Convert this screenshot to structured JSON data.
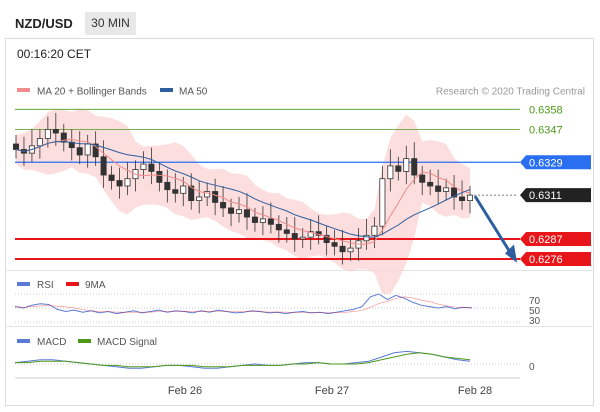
{
  "header": {
    "pair": "NZD/USD",
    "timeframe": "30 MIN",
    "time": "00:16:20 CET"
  },
  "chart_data": [
    {
      "type": "candlestick",
      "title": "",
      "copyright": "Research © 2020 Trading Central",
      "legend": [
        {
          "name": "MA 20 + Bollinger Bands",
          "color": "#f28b8b"
        },
        {
          "name": "MA 50",
          "color": "#2d5f9e"
        }
      ],
      "x_ticks": [
        "Feb 26",
        "Feb 27",
        "Feb 28"
      ],
      "ylim": [
        0.627,
        0.6362
      ],
      "levels": [
        {
          "label": "0.6358",
          "value": 0.6358,
          "color": "#4d9a1a",
          "kind": "target"
        },
        {
          "label": "0.6347",
          "value": 0.6347,
          "color": "#4d9a1a",
          "kind": "target"
        },
        {
          "label": "0.6329",
          "value": 0.6329,
          "color": "#2a6ff0",
          "kind": "pivot"
        },
        {
          "label": "0.6311",
          "value": 0.6311,
          "color": "#222222",
          "kind": "last"
        },
        {
          "label": "0.6287",
          "value": 0.6287,
          "color": "#e8161a",
          "kind": "support"
        },
        {
          "label": "0.6276",
          "value": 0.6276,
          "color": "#e8161a",
          "kind": "support"
        }
      ],
      "series": [
        {
          "name": "Close",
          "values": [
            0.6336,
            0.6334,
            0.6338,
            0.6342,
            0.6347,
            0.6345,
            0.634,
            0.6337,
            0.6333,
            0.6339,
            0.6332,
            0.6322,
            0.6319,
            0.6316,
            0.632,
            0.6325,
            0.6328,
            0.6324,
            0.6318,
            0.6314,
            0.6312,
            0.6316,
            0.6308,
            0.631,
            0.6313,
            0.6307,
            0.6304,
            0.6301,
            0.6303,
            0.6299,
            0.6296,
            0.6298,
            0.6295,
            0.6292,
            0.629,
            0.6287,
            0.6288,
            0.6291,
            0.6289,
            0.6285,
            0.6283,
            0.628,
            0.6282,
            0.6286,
            0.6289,
            0.6294,
            0.632,
            0.6327,
            0.6324,
            0.6331,
            0.6322,
            0.6318,
            0.6316,
            0.6313,
            0.6315,
            0.631,
            0.6308,
            0.6311
          ]
        }
      ]
    },
    {
      "type": "line",
      "title": "",
      "legend": [
        {
          "name": "RSI",
          "color": "#5b7bd5"
        },
        {
          "name": "9MA",
          "color": "#e8161a"
        }
      ],
      "y_ticks": [
        "70",
        "50",
        "30"
      ],
      "series": [
        {
          "name": "RSI",
          "values": [
            52,
            50,
            54,
            56,
            55,
            48,
            45,
            47,
            44,
            46,
            43,
            45,
            42,
            44,
            46,
            43,
            45,
            47,
            44,
            46,
            45,
            43,
            46,
            44,
            47,
            45,
            43,
            44,
            46,
            45,
            43,
            44,
            42,
            44,
            45,
            43,
            44,
            42,
            44,
            46,
            48,
            52,
            66,
            70,
            62,
            68,
            64,
            58,
            54,
            52,
            50,
            52,
            49,
            51,
            50
          ]
        }
      ]
    },
    {
      "type": "line",
      "title": "",
      "legend": [
        {
          "name": "MACD",
          "color": "#5b7bd5"
        },
        {
          "name": "MACD Signal",
          "color": "#4d9a1a"
        }
      ],
      "y_ticks": [
        "0"
      ],
      "series": [
        {
          "name": "MACD",
          "values": [
            1,
            2,
            3,
            3,
            2,
            1,
            0,
            -1,
            -2,
            -3,
            -3,
            -2,
            -1,
            -1,
            -2,
            -3,
            -3,
            -2,
            -1,
            0,
            -1,
            -1,
            0,
            1,
            1,
            0,
            0,
            1,
            2,
            5,
            8,
            9,
            8,
            7,
            5,
            3,
            2
          ]
        },
        {
          "name": "MACD Signal",
          "values": [
            1,
            1,
            2,
            2,
            2,
            1,
            0,
            -1,
            -1,
            -2,
            -2,
            -2,
            -1,
            -1,
            -1,
            -2,
            -2,
            -2,
            -1,
            -1,
            -1,
            -1,
            0,
            0,
            1,
            0,
            0,
            0,
            1,
            3,
            5,
            7,
            8,
            7,
            5,
            4,
            3
          ]
        }
      ]
    }
  ]
}
